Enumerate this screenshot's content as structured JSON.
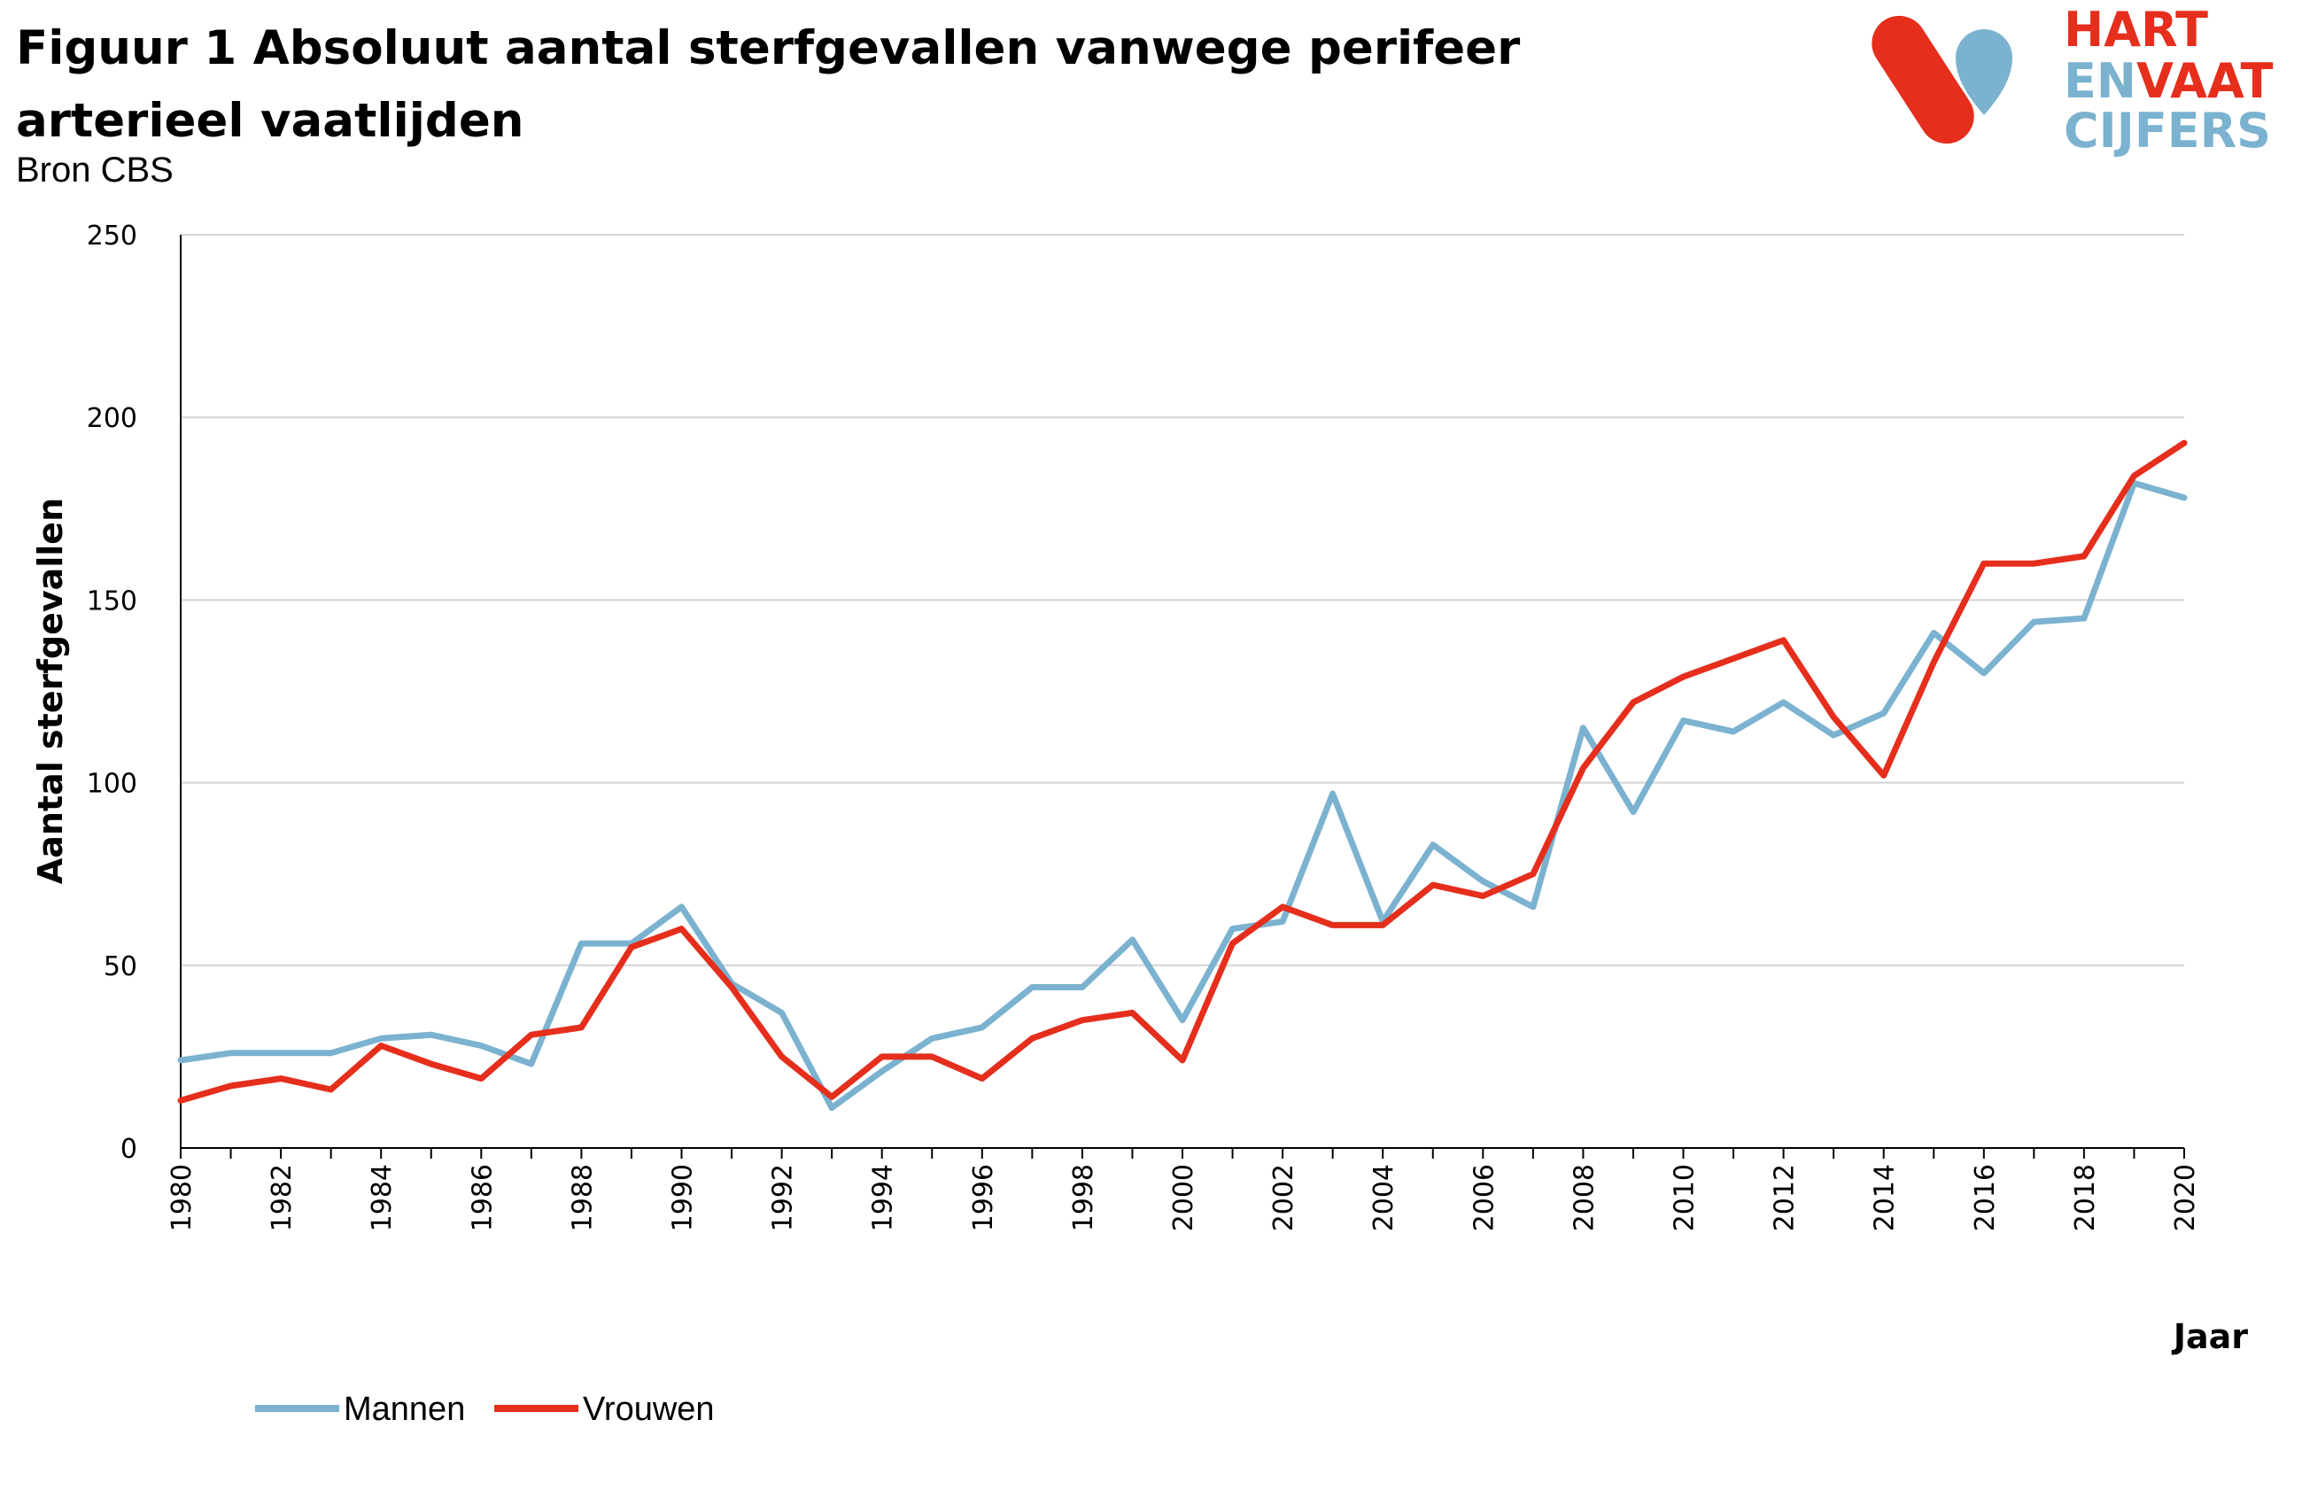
{
  "header": {
    "title": "Figuur 1 Absoluut aantal sterfgevallen vanwege perifeer arterieel vaatlijden",
    "subtitle": "Bron CBS"
  },
  "logo": {
    "line1": "HART",
    "line2a": "EN",
    "line2b": "VAAT",
    "line3": "CIJFERS",
    "colors": {
      "red": "#E52E1C",
      "blue": "#7BB2D0"
    }
  },
  "chart_data": {
    "type": "line",
    "title": "",
    "xlabel": "Jaar",
    "ylabel": "Aantal sterfgevallen",
    "ylim": [
      0,
      250
    ],
    "yticks": [
      0,
      50,
      100,
      150,
      200,
      250
    ],
    "x": [
      1980,
      1981,
      1982,
      1983,
      1984,
      1985,
      1986,
      1987,
      1988,
      1989,
      1990,
      1991,
      1992,
      1993,
      1994,
      1995,
      1996,
      1997,
      1998,
      1999,
      2000,
      2001,
      2002,
      2003,
      2004,
      2005,
      2006,
      2007,
      2008,
      2009,
      2010,
      2011,
      2012,
      2013,
      2014,
      2015,
      2016,
      2017,
      2018,
      2019,
      2020
    ],
    "xticks": [
      1980,
      1982,
      1984,
      1986,
      1988,
      1990,
      1992,
      1994,
      1996,
      1998,
      2000,
      2002,
      2004,
      2006,
      2008,
      2010,
      2012,
      2014,
      2016,
      2018,
      2020
    ],
    "grid": "horizontal",
    "legend_position": "bottom-left",
    "series": [
      {
        "name": "Mannen",
        "color": "#7BB2D0",
        "values": [
          24,
          26,
          26,
          26,
          30,
          31,
          28,
          23,
          56,
          56,
          66,
          45,
          37,
          11,
          21,
          30,
          33,
          44,
          44,
          57,
          35,
          60,
          62,
          97,
          62,
          83,
          73,
          66,
          115,
          92,
          117,
          114,
          122,
          113,
          119,
          141,
          130,
          144,
          145,
          182,
          178
        ]
      },
      {
        "name": "Vrouwen",
        "color": "#E52E1C",
        "values": [
          13,
          17,
          19,
          16,
          28,
          23,
          19,
          31,
          33,
          55,
          60,
          44,
          25,
          14,
          25,
          25,
          19,
          30,
          35,
          37,
          24,
          56,
          66,
          61,
          61,
          72,
          69,
          75,
          104,
          122,
          129,
          134,
          139,
          118,
          102,
          133,
          160,
          160,
          162,
          184,
          193
        ]
      }
    ]
  }
}
